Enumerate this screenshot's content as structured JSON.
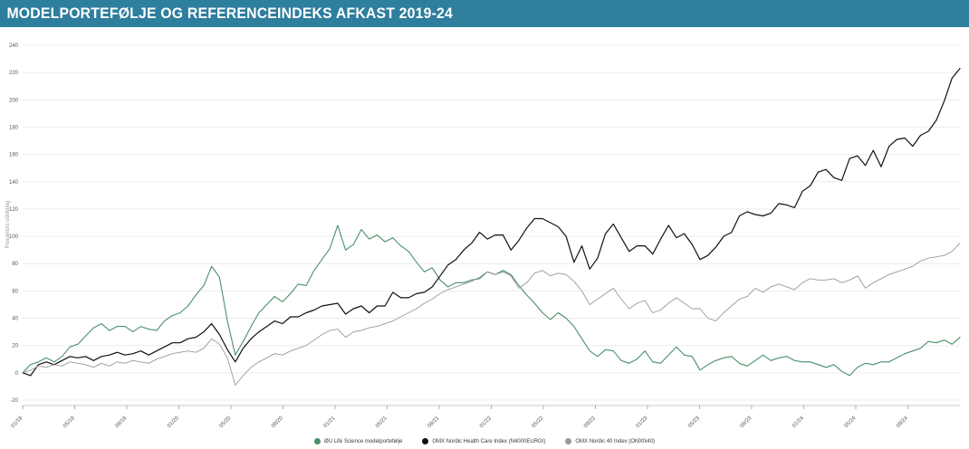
{
  "header": {
    "title": "MODELPORTEFØLJE OG REFERENCEINDEKS AFKAST 2019-24",
    "bar_color": "#2e7e9e"
  },
  "chart_data": {
    "type": "line",
    "title": "MODELPORTEFØLJE OG REFERENCEINDEKS AFKAST 2019-24",
    "xlabel": "",
    "ylabel": "Procentvis udvikling",
    "ylim": [
      -20,
      240
    ],
    "yticks": [
      240,
      220,
      200,
      180,
      160,
      140,
      120,
      100,
      80,
      60,
      40,
      20,
      0,
      -20
    ],
    "xticklabels": [
      "01/19",
      "05/19",
      "09/19",
      "01/20",
      "05/20",
      "09/20",
      "01/21",
      "05/21",
      "09/21",
      "01/22",
      "05/22",
      "09/22",
      "01/23",
      "05/23",
      "09/23",
      "01/24",
      "05/24",
      "09/24"
    ],
    "grid": true,
    "grid_color": "#ececec",
    "axis_text_color": "#555555",
    "legend_position": "bottom",
    "series": [
      {
        "name": "ØU Life Science modelportefølje",
        "color": "#4a9069",
        "values": [
          0,
          6,
          8,
          11,
          8,
          12,
          19,
          21,
          27,
          33,
          36,
          31,
          34,
          34,
          30,
          34,
          32,
          31,
          38,
          42,
          44,
          49,
          57,
          64,
          78,
          70,
          38,
          13,
          23,
          34,
          44,
          50,
          56,
          52,
          58,
          65,
          64,
          75,
          83,
          91,
          108,
          90,
          94,
          105,
          98,
          101,
          96,
          99,
          93,
          89,
          81,
          74,
          77,
          68,
          63,
          66,
          66,
          68,
          69,
          74,
          72,
          75,
          72,
          64,
          57,
          51,
          44,
          39,
          44,
          40,
          34,
          25,
          16,
          12,
          17,
          16,
          9,
          7,
          10,
          16,
          8,
          7,
          13,
          19,
          13,
          12,
          2,
          6,
          9,
          11,
          12,
          7,
          5,
          9,
          13,
          9,
          11,
          12,
          9,
          8,
          8,
          6,
          4,
          6,
          1,
          -2,
          4,
          7,
          6,
          8,
          8,
          11,
          14,
          16,
          18,
          23,
          22,
          24,
          21,
          26
        ]
      },
      {
        "name": "OMX Nordic Health Care Index (N4000EURGI)",
        "color": "#111111",
        "values": [
          0,
          -2,
          6,
          8,
          6,
          9,
          12,
          11,
          12,
          9,
          12,
          13,
          15,
          13,
          14,
          16,
          13,
          16,
          19,
          22,
          22,
          25,
          26,
          30,
          36,
          28,
          17,
          8,
          18,
          25,
          30,
          34,
          38,
          36,
          41,
          41,
          44,
          46,
          49,
          50,
          51,
          43,
          47,
          49,
          44,
          49,
          49,
          59,
          55,
          55,
          58,
          59,
          63,
          71,
          79,
          83,
          90,
          95,
          103,
          98,
          101,
          101,
          90,
          97,
          106,
          113,
          113,
          110,
          107,
          100,
          81,
          93,
          76,
          84,
          102,
          109,
          99,
          89,
          93,
          93,
          87,
          98,
          108,
          99,
          102,
          94,
          83,
          86,
          92,
          100,
          103,
          115,
          118,
          116,
          115,
          117,
          124,
          123,
          121,
          133,
          137,
          147,
          149,
          143,
          141,
          157,
          159,
          152,
          163,
          151,
          166,
          171,
          172,
          166,
          174,
          177,
          185,
          199,
          216,
          223
        ]
      },
      {
        "name": "OMX Nordic 40 Index (OMXN40)",
        "color": "#9a9a9a",
        "values": [
          0,
          2,
          5,
          4,
          6,
          5,
          8,
          7,
          6,
          4,
          7,
          5,
          8,
          7,
          9,
          8,
          7,
          10,
          12,
          14,
          15,
          16,
          15,
          18,
          25,
          21,
          11,
          -9,
          -2,
          4,
          8,
          11,
          14,
          13,
          16,
          18,
          20,
          24,
          28,
          31,
          32,
          26,
          30,
          31,
          33,
          34,
          36,
          38,
          41,
          44,
          47,
          51,
          54,
          58,
          61,
          63,
          65,
          67,
          70,
          74,
          72,
          74,
          71,
          62,
          66,
          73,
          75,
          71,
          73,
          72,
          67,
          60,
          50,
          54,
          58,
          62,
          54,
          47,
          51,
          53,
          44,
          46,
          51,
          55,
          51,
          47,
          47,
          40,
          38,
          44,
          49,
          54,
          56,
          62,
          59,
          63,
          65,
          63,
          61,
          66,
          69,
          68,
          68,
          69,
          66,
          68,
          71,
          62,
          66,
          69,
          72,
          74,
          76,
          78,
          82,
          84,
          85,
          86,
          89,
          95
        ]
      }
    ]
  }
}
